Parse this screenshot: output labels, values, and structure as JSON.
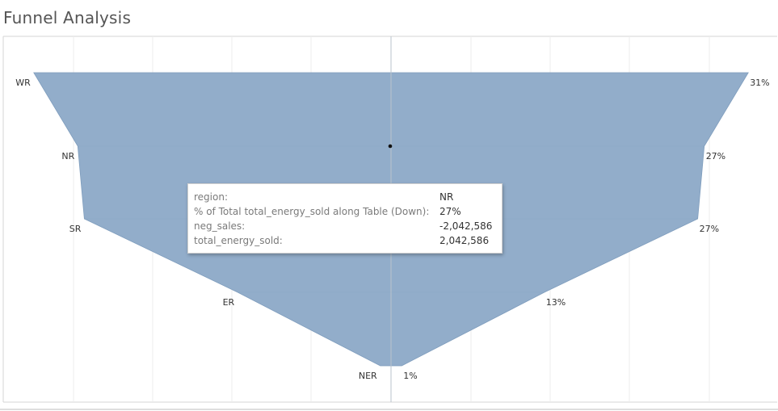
{
  "page": {
    "title": "Funnel Analysis"
  },
  "colors": {
    "funnel_fill": "#92adca",
    "funnel_stroke": "#7f9dbd",
    "axis_line": "#b9c3cc",
    "grid_line": "#ececec",
    "frame": "#d6d6d6"
  },
  "chart_data": {
    "type": "bar",
    "subtype": "funnel",
    "categories": [
      "WR",
      "NR",
      "SR",
      "ER",
      "NER"
    ],
    "percent_labels": [
      "31%",
      "27%",
      "27%",
      "13%",
      "1%"
    ],
    "series": [
      {
        "name": "neg_sales",
        "values": [
          -2330000,
          -2042586,
          -2000000,
          -1000000,
          -70000
        ]
      },
      {
        "name": "total_energy_sold",
        "values": [
          2330000,
          2042586,
          2000000,
          1000000,
          70000
        ]
      }
    ],
    "xlim": [
      -2450000,
      2450000
    ],
    "grid": true
  },
  "tooltip": {
    "rows": [
      {
        "key": "region:",
        "value": "NR"
      },
      {
        "key": "% of Total total_energy_sold along Table (Down):",
        "value": "27%"
      },
      {
        "key": "neg_sales:",
        "value": "-2,042,586"
      },
      {
        "key": "total_energy_sold:",
        "value": "2,042,586"
      }
    ]
  }
}
